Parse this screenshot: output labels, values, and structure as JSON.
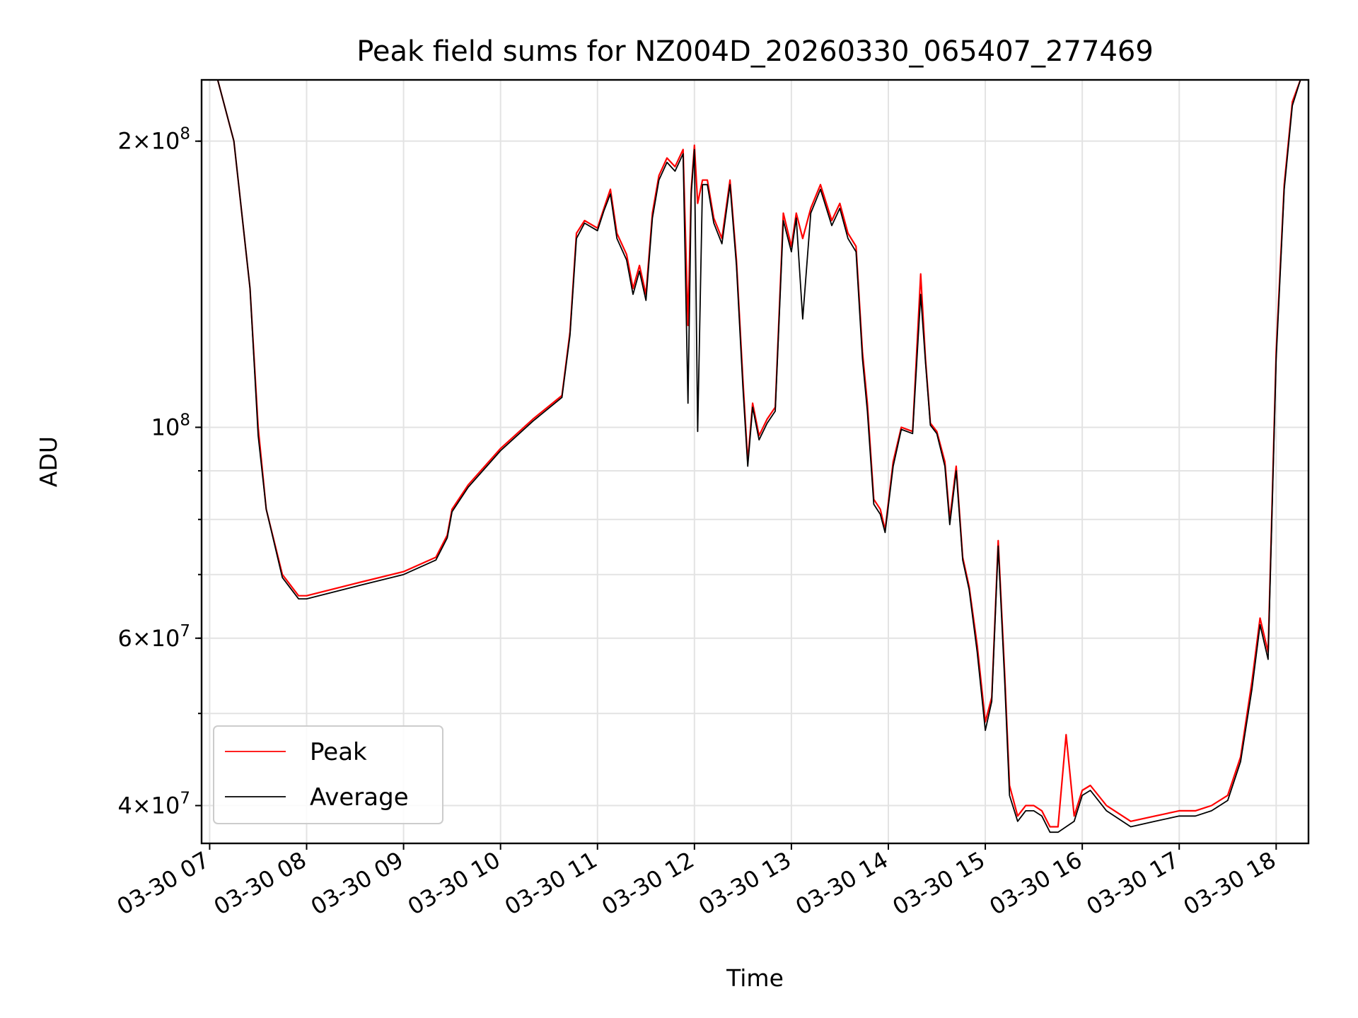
{
  "chart_data": {
    "type": "line",
    "title": "Peak field sums for NZ004D_20260330_065407_277469",
    "xlabel": "Time",
    "ylabel": "ADU",
    "yscale": "log",
    "xlim": [
      "03-30 06:55",
      "03-30 18:20"
    ],
    "ylim": [
      36500000,
      232000000
    ],
    "grid": true,
    "legend_position": "lower left",
    "x_tick_labels": [
      "03-30 07",
      "03-30 08",
      "03-30 09",
      "03-30 10",
      "03-30 11",
      "03-30 12",
      "03-30 13",
      "03-30 14",
      "03-30 15",
      "03-30 16",
      "03-30 17",
      "03-30 18"
    ],
    "y_tick_labels": [
      {
        "value": 200000000,
        "mantissa": "2",
        "exponent": "8"
      },
      {
        "value": 100000000,
        "mantissa": "",
        "exponent": "8"
      },
      {
        "value": 60000000,
        "mantissa": "6",
        "exponent": "7"
      },
      {
        "value": 40000000,
        "mantissa": "4",
        "exponent": "7"
      }
    ],
    "series": [
      {
        "name": "Peak",
        "color": "#ff0000",
        "x": [
          "03-30 07:05",
          "03-30 07:15",
          "03-30 07:25",
          "03-30 07:30",
          "03-30 07:35",
          "03-30 07:45",
          "03-30 07:55",
          "03-30 08:00",
          "03-30 08:30",
          "03-30 09:00",
          "03-30 09:20",
          "03-30 09:27",
          "03-30 09:30",
          "03-30 09:40",
          "03-30 10:00",
          "03-30 10:20",
          "03-30 10:38",
          "03-30 10:43",
          "03-30 10:47",
          "03-30 10:52",
          "03-30 11:00",
          "03-30 11:04",
          "03-30 11:08",
          "03-30 11:12",
          "03-30 11:18",
          "03-30 11:22",
          "03-30 11:26",
          "03-30 11:30",
          "03-30 11:34",
          "03-30 11:38",
          "03-30 11:43",
          "03-30 11:48",
          "03-30 11:53",
          "03-30 11:56",
          "03-30 11:58",
          "03-30 12:00",
          "03-30 12:02",
          "03-30 12:05",
          "03-30 12:08",
          "03-30 12:12",
          "03-30 12:17",
          "03-30 12:22",
          "03-30 12:26",
          "03-30 12:30",
          "03-30 12:33",
          "03-30 12:36",
          "03-30 12:40",
          "03-30 12:45",
          "03-30 12:50",
          "03-30 12:55",
          "03-30 13:00",
          "03-30 13:03",
          "03-30 13:07",
          "03-30 13:12",
          "03-30 13:18",
          "03-30 13:25",
          "03-30 13:30",
          "03-30 13:35",
          "03-30 13:40",
          "03-30 13:44",
          "03-30 13:47",
          "03-30 13:51",
          "03-30 13:55",
          "03-30 13:58",
          "03-30 14:03",
          "03-30 14:08",
          "03-30 14:15",
          "03-30 14:20",
          "03-30 14:23",
          "03-30 14:26",
          "03-30 14:30",
          "03-30 14:35",
          "03-30 14:38",
          "03-30 14:42",
          "03-30 14:46",
          "03-30 14:50",
          "03-30 14:55",
          "03-30 15:00",
          "03-30 15:04",
          "03-30 15:08",
          "03-30 15:12",
          "03-30 15:15",
          "03-30 15:20",
          "03-30 15:25",
          "03-30 15:30",
          "03-30 15:35",
          "03-30 15:40",
          "03-30 15:45",
          "03-30 15:50",
          "03-30 15:55",
          "03-30 16:00",
          "03-30 16:05",
          "03-30 16:15",
          "03-30 16:30",
          "03-30 16:45",
          "03-30 17:00",
          "03-30 17:10",
          "03-30 17:20",
          "03-30 17:30",
          "03-30 17:38",
          "03-30 17:45",
          "03-30 17:50",
          "03-30 17:55",
          "03-30 18:00",
          "03-30 18:05",
          "03-30 18:10",
          "03-30 18:15"
        ],
        "values": [
          232000000,
          200000000,
          140000000,
          100000000,
          82000000,
          70000000,
          66500000,
          66500000,
          68500000,
          70500000,
          73000000,
          77000000,
          82000000,
          87000000,
          95000000,
          102000000,
          108000000,
          126000000,
          160000000,
          165000000,
          162000000,
          170000000,
          178000000,
          160000000,
          152000000,
          140000000,
          148000000,
          138000000,
          168000000,
          184000000,
          192000000,
          188000000,
          196000000,
          128000000,
          178000000,
          198000000,
          172000000,
          182000000,
          182000000,
          166000000,
          158000000,
          182000000,
          150000000,
          112000000,
          92000000,
          106000000,
          98000000,
          102000000,
          105000000,
          168000000,
          155000000,
          168000000,
          158000000,
          170000000,
          180000000,
          165000000,
          172000000,
          160000000,
          155000000,
          120000000,
          106000000,
          84000000,
          82000000,
          78000000,
          92000000,
          100000000,
          99000000,
          145000000,
          118000000,
          101000000,
          99000000,
          92000000,
          80000000,
          91000000,
          73000000,
          68000000,
          59000000,
          49000000,
          52000000,
          76000000,
          55000000,
          42000000,
          39000000,
          40000000,
          40000000,
          39500000,
          38000000,
          38000000,
          47500000,
          39000000,
          41500000,
          42000000,
          40000000,
          38500000,
          39000000,
          39500000,
          39500000,
          40000000,
          41000000,
          45000000,
          54000000,
          63000000,
          58000000,
          120000000,
          180000000,
          220000000,
          232000000
        ]
      },
      {
        "name": "Average",
        "color": "#000000",
        "x": [
          "03-30 07:05",
          "03-30 07:15",
          "03-30 07:25",
          "03-30 07:30",
          "03-30 07:35",
          "03-30 07:45",
          "03-30 07:55",
          "03-30 08:00",
          "03-30 08:30",
          "03-30 09:00",
          "03-30 09:20",
          "03-30 09:27",
          "03-30 09:30",
          "03-30 09:40",
          "03-30 10:00",
          "03-30 10:20",
          "03-30 10:38",
          "03-30 10:43",
          "03-30 10:47",
          "03-30 10:52",
          "03-30 11:00",
          "03-30 11:04",
          "03-30 11:08",
          "03-30 11:12",
          "03-30 11:18",
          "03-30 11:22",
          "03-30 11:26",
          "03-30 11:30",
          "03-30 11:34",
          "03-30 11:38",
          "03-30 11:43",
          "03-30 11:48",
          "03-30 11:53",
          "03-30 11:56",
          "03-30 11:58",
          "03-30 12:00",
          "03-30 12:02",
          "03-30 12:05",
          "03-30 12:08",
          "03-30 12:12",
          "03-30 12:17",
          "03-30 12:22",
          "03-30 12:26",
          "03-30 12:30",
          "03-30 12:33",
          "03-30 12:36",
          "03-30 12:40",
          "03-30 12:45",
          "03-30 12:50",
          "03-30 12:55",
          "03-30 13:00",
          "03-30 13:03",
          "03-30 13:07",
          "03-30 13:12",
          "03-30 13:18",
          "03-30 13:25",
          "03-30 13:30",
          "03-30 13:35",
          "03-30 13:40",
          "03-30 13:44",
          "03-30 13:47",
          "03-30 13:51",
          "03-30 13:55",
          "03-30 13:58",
          "03-30 14:03",
          "03-30 14:08",
          "03-30 14:15",
          "03-30 14:20",
          "03-30 14:23",
          "03-30 14:26",
          "03-30 14:30",
          "03-30 14:35",
          "03-30 14:38",
          "03-30 14:42",
          "03-30 14:46",
          "03-30 14:50",
          "03-30 14:55",
          "03-30 15:00",
          "03-30 15:04",
          "03-30 15:08",
          "03-30 15:12",
          "03-30 15:15",
          "03-30 15:20",
          "03-30 15:25",
          "03-30 15:30",
          "03-30 15:35",
          "03-30 15:40",
          "03-30 15:45",
          "03-30 15:50",
          "03-30 15:55",
          "03-30 16:00",
          "03-30 16:05",
          "03-30 16:15",
          "03-30 16:30",
          "03-30 16:45",
          "03-30 17:00",
          "03-30 17:10",
          "03-30 17:20",
          "03-30 17:30",
          "03-30 17:38",
          "03-30 17:45",
          "03-30 17:50",
          "03-30 17:55",
          "03-30 18:00",
          "03-30 18:05",
          "03-30 18:10",
          "03-30 18:15"
        ],
        "values": [
          232000000,
          200000000,
          140000000,
          98000000,
          82000000,
          69500000,
          66000000,
          66000000,
          68000000,
          70000000,
          72500000,
          76500000,
          81500000,
          86500000,
          94500000,
          101500000,
          107500000,
          125000000,
          158000000,
          164000000,
          161000000,
          169000000,
          176000000,
          158000000,
          150000000,
          138000000,
          146000000,
          136000000,
          166000000,
          182000000,
          190000000,
          186000000,
          194000000,
          106000000,
          176000000,
          196000000,
          99000000,
          180000000,
          180000000,
          164000000,
          156000000,
          180000000,
          148000000,
          110000000,
          91000000,
          105000000,
          97000000,
          101000000,
          104000000,
          165000000,
          153000000,
          166000000,
          130000000,
          168000000,
          178000000,
          163000000,
          170000000,
          158000000,
          153000000,
          118000000,
          104000000,
          83000000,
          81000000,
          77500000,
          91000000,
          99500000,
          98500000,
          138000000,
          117000000,
          100500000,
          98500000,
          91000000,
          79000000,
          90000000,
          72500000,
          67500000,
          58000000,
          48000000,
          51500000,
          75000000,
          54000000,
          41000000,
          38500000,
          39500000,
          39500000,
          39000000,
          37500000,
          37500000,
          38000000,
          38500000,
          41000000,
          41500000,
          39500000,
          38000000,
          38500000,
          39000000,
          39000000,
          39500000,
          40500000,
          44500000,
          53000000,
          62000000,
          57000000,
          118000000,
          178000000,
          218000000,
          232000000
        ]
      }
    ]
  }
}
